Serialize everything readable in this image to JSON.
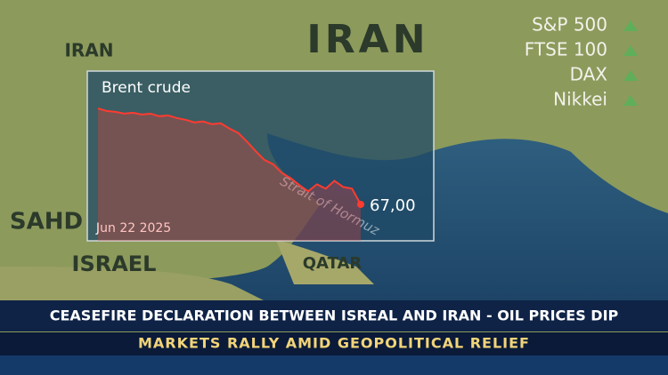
{
  "map_labels": {
    "iran_large": "IRAN",
    "iran_small": "IRAN",
    "sahd": "SAHD",
    "israel": "ISRAEL",
    "qatar": "QATAR",
    "strait": "Strait of Hormuz"
  },
  "indices": [
    "S&P 500",
    "FTSE 100",
    "DAX",
    "Nikkei"
  ],
  "chart_data": {
    "type": "line",
    "title": "Brent crude",
    "date_label": "Jun 22 2025",
    "color": "#ff3b30",
    "values": [
      78.0,
      77.7,
      77.6,
      77.4,
      77.5,
      77.3,
      77.4,
      77.1,
      77.2,
      76.9,
      76.7,
      76.4,
      76.5,
      76.2,
      76.3,
      75.7,
      75.2,
      74.2,
      73.1,
      72.1,
      71.6,
      70.6,
      70.0,
      69.2,
      68.5,
      69.3,
      68.8,
      69.7,
      69.0,
      68.8,
      67.0
    ],
    "value_labels": [
      null,
      null,
      null,
      null,
      null,
      null,
      null,
      null,
      null,
      null,
      null,
      null,
      null,
      null,
      null,
      null,
      null,
      null,
      null,
      null,
      null,
      null,
      null,
      null,
      null,
      null,
      null,
      null,
      null,
      null,
      "67,00"
    ]
  },
  "headline": "CEASEFIRE DECLARATION BETWEEN ISREAL AND IRAN - OIL PRICES DIP",
  "subheadline": "MARKETS RALLY AMID GEOPOLITICAL RELIEF"
}
